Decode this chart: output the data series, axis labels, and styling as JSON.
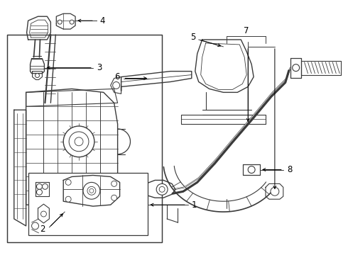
{
  "background_color": "#ffffff",
  "line_color": "#3a3a3a",
  "label_color": "#000000",
  "label_fontsize": 8.5,
  "fig_width": 4.9,
  "fig_height": 3.6,
  "dpi": 100
}
